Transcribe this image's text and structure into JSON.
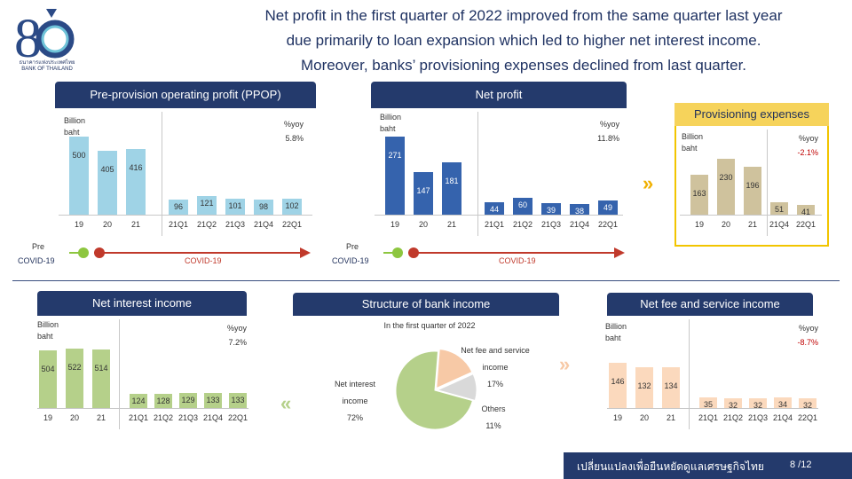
{
  "logo": {
    "caption_th": "ธนาคารแห่งประเทศไทย",
    "caption_en": "BANK OF THAILAND"
  },
  "headline": [
    "Net profit in the first quarter of 2022 improved from the same quarter last year",
    "due primarily to loan expansion which led to higher net interest income.",
    "Moreover, banks’ provisioning expenses declined from last quarter."
  ],
  "ppop": {
    "title": "Pre-provision operating profit (PPOP)",
    "unit": [
      "Billion",
      "baht"
    ],
    "yoy_label": "%yoy",
    "yoy_value": "5.8%",
    "annual": [
      {
        "x": "19",
        "v": 500
      },
      {
        "x": "20",
        "v": 405
      },
      {
        "x": "21",
        "v": 416
      }
    ],
    "quarterly": [
      {
        "x": "21Q1",
        "v": 96
      },
      {
        "x": "21Q2",
        "v": 121
      },
      {
        "x": "21Q3",
        "v": 101
      },
      {
        "x": "21Q4",
        "v": 98
      },
      {
        "x": "22Q1",
        "v": 102
      }
    ],
    "color": "#9fd3e6"
  },
  "netprofit": {
    "title": "Net profit",
    "unit": [
      "Billion",
      "baht"
    ],
    "yoy_label": "%yoy",
    "yoy_value": "11.8%",
    "annual": [
      {
        "x": "19",
        "v": 271
      },
      {
        "x": "20",
        "v": 147
      },
      {
        "x": "21",
        "v": 181
      }
    ],
    "quarterly": [
      {
        "x": "21Q1",
        "v": 44
      },
      {
        "x": "21Q2",
        "v": 60
      },
      {
        "x": "21Q3",
        "v": 39
      },
      {
        "x": "21Q4",
        "v": 38
      },
      {
        "x": "22Q1",
        "v": 49
      }
    ],
    "color": "#3563ad"
  },
  "prov": {
    "title": "Provisioning expenses",
    "unit": [
      "Billion",
      "baht"
    ],
    "yoy_label": "%yoy",
    "yoy_value": "-2.1%",
    "annual": [
      {
        "x": "19",
        "v": 163
      },
      {
        "x": "20",
        "v": 230
      },
      {
        "x": "21",
        "v": 196
      }
    ],
    "quarterly": [
      {
        "x": "21Q4",
        "v": 51
      },
      {
        "x": "22Q1",
        "v": 41
      }
    ],
    "color": "#cfc29d"
  },
  "covid": {
    "pre_line1": "Pre",
    "pre_line2": "COVID-19",
    "covid": "COVID-19"
  },
  "nii": {
    "title": "Net interest income",
    "unit": [
      "Billion",
      "baht"
    ],
    "yoy_label": "%yoy",
    "yoy_value": "7.2%",
    "annual": [
      {
        "x": "19",
        "v": 504
      },
      {
        "x": "20",
        "v": 522
      },
      {
        "x": "21",
        "v": 514
      }
    ],
    "quarterly": [
      {
        "x": "21Q1",
        "v": 124
      },
      {
        "x": "21Q2",
        "v": 128
      },
      {
        "x": "21Q3",
        "v": 129
      },
      {
        "x": "21Q4",
        "v": 133
      },
      {
        "x": "22Q1",
        "v": 133
      }
    ],
    "color": "#b5d08a"
  },
  "structure": {
    "title": "Structure of bank income",
    "subtitle": "In the first quarter of 2022",
    "slices": [
      {
        "name_lines": [
          "Net interest",
          "income"
        ],
        "pct": "72%",
        "value": 72,
        "color": "#b5d08a"
      },
      {
        "name_lines": [
          "Net fee and service",
          "income"
        ],
        "pct": "17%",
        "value": 17,
        "color": "#f7c9a6"
      },
      {
        "name_lines": [
          "Others"
        ],
        "pct": "11%",
        "value": 11,
        "color": "#d9d9d9"
      }
    ]
  },
  "fee": {
    "title": "Net fee and service income",
    "unit": [
      "Billion",
      "baht"
    ],
    "yoy_label": "%yoy",
    "yoy_value": "-8.7%",
    "annual": [
      {
        "x": "19",
        "v": 146
      },
      {
        "x": "20",
        "v": 132
      },
      {
        "x": "21",
        "v": 134
      }
    ],
    "quarterly": [
      {
        "x": "21Q1",
        "v": 35
      },
      {
        "x": "21Q2",
        "v": 32
      },
      {
        "x": "21Q3",
        "v": 32
      },
      {
        "x": "21Q4",
        "v": 34
      },
      {
        "x": "22Q1",
        "v": 32
      }
    ],
    "color": "#fbd9bd"
  },
  "arrows": {
    "right": "»",
    "left": "«"
  },
  "footer": {
    "slogan": "เปลี่ยนแปลงเพื่อยืนหยัดดูแลเศรษฐกิจไทย",
    "page": "8 /12"
  }
}
